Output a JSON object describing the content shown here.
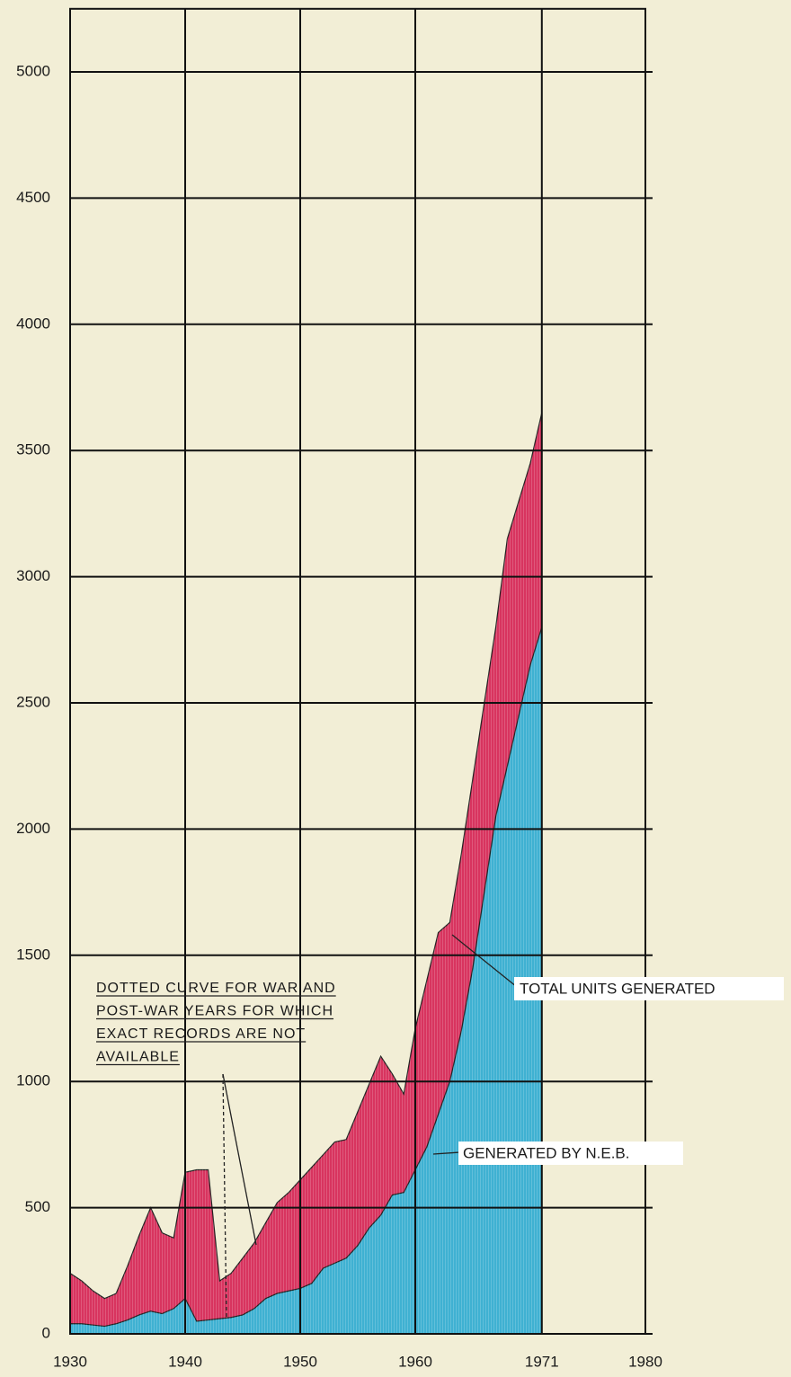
{
  "chart_data": {
    "type": "area",
    "x": [
      1930,
      1931,
      1932,
      1933,
      1934,
      1935,
      1936,
      1937,
      1938,
      1939,
      1940,
      1941,
      1942,
      1943,
      1944,
      1945,
      1946,
      1947,
      1948,
      1949,
      1950,
      1951,
      1952,
      1953,
      1954,
      1955,
      1956,
      1957,
      1958,
      1959,
      1960,
      1961,
      1962,
      1963,
      1964,
      1965,
      1966,
      1967,
      1968,
      1969,
      1970,
      1971
    ],
    "series": [
      {
        "name": "TOTAL UNITS GENERATED",
        "color": "#d8345f",
        "values": [
          240,
          210,
          170,
          140,
          160,
          270,
          390,
          500,
          400,
          380,
          640,
          650,
          650,
          210,
          240,
          300,
          360,
          440,
          520,
          560,
          610,
          660,
          710,
          760,
          770,
          880,
          990,
          1100,
          1030,
          950,
          1210,
          1400,
          1590,
          1630,
          1900,
          2200,
          2500,
          2800,
          3150,
          3300,
          3450,
          3650
        ]
      },
      {
        "name": "GENERATED BY N.E.B.",
        "color": "#3fb1d2",
        "values": [
          40,
          40,
          35,
          30,
          40,
          55,
          75,
          90,
          80,
          100,
          140,
          50,
          55,
          60,
          65,
          75,
          100,
          140,
          160,
          170,
          180,
          200,
          260,
          280,
          300,
          350,
          420,
          470,
          550,
          560,
          650,
          740,
          870,
          1000,
          1200,
          1450,
          1750,
          2050,
          2250,
          2450,
          2650,
          2800
        ]
      }
    ],
    "annotation": [
      "DOTTED CURVE FOR WAR AND",
      "POST-WAR YEARS FOR WHICH",
      "EXACT RECORDS ARE NOT",
      "AVAILABLE"
    ],
    "xlim": [
      1930,
      1980
    ],
    "xticks": [
      1930,
      1940,
      1950,
      1960,
      1971,
      1980
    ],
    "ylim": [
      0,
      5250
    ],
    "yticks": [
      0,
      500,
      1000,
      1500,
      2000,
      2500,
      3000,
      3500,
      4000,
      4500,
      5000
    ],
    "grid": true
  }
}
